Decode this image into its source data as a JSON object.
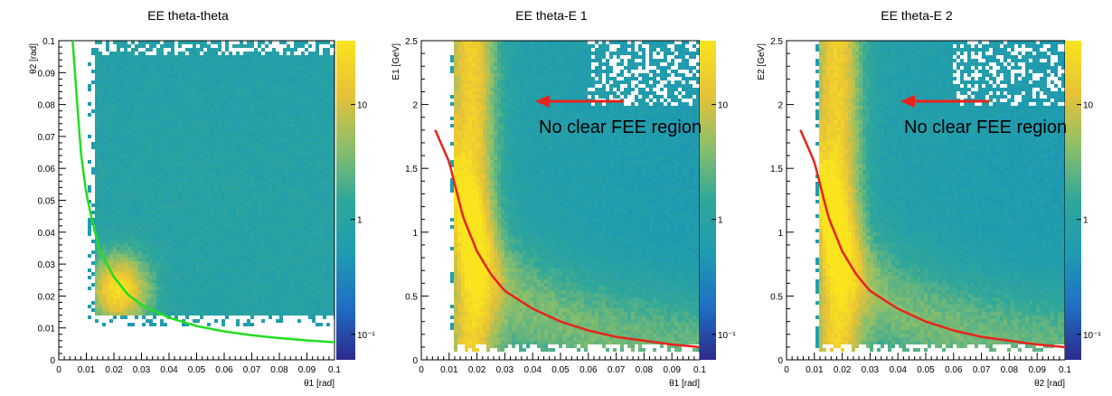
{
  "chart_data": [
    {
      "type": "heatmap",
      "title": "EE theta-theta",
      "xlabel": "θ1 [rad]",
      "ylabel": "θ2 [rad]",
      "xlim": [
        0,
        0.1
      ],
      "ylim": [
        0,
        0.1
      ],
      "x_ticks": [
        "0",
        "0.01",
        "0.02",
        "0.03",
        "0.04",
        "0.05",
        "0.06",
        "0.07",
        "0.08",
        "0.09",
        "0.1"
      ],
      "y_ticks": [
        "0",
        "0.01",
        "0.02",
        "0.03",
        "0.04",
        "0.05",
        "0.06",
        "0.07",
        "0.08",
        "0.09",
        "0.1"
      ],
      "colorbar_ticks": [
        "10",
        "1",
        "10⁻¹"
      ],
      "colorscale": [
        "#2c2a8c",
        "#1f6fc4",
        "#1f9bb0",
        "#2fa79a",
        "#8cbf6a",
        "#e8c237",
        "#f9e41e"
      ],
      "curve": {
        "color": "#22dd22",
        "x": [
          0.005,
          0.008,
          0.01,
          0.0125,
          0.015,
          0.02,
          0.025,
          0.03,
          0.04,
          0.05,
          0.06,
          0.07,
          0.08,
          0.09,
          0.1
        ],
        "y": [
          0.1,
          0.065,
          0.052,
          0.042,
          0.034,
          0.026,
          0.0205,
          0.0172,
          0.0132,
          0.0106,
          0.0089,
          0.0077,
          0.0068,
          0.0061,
          0.0055
        ]
      }
    },
    {
      "type": "heatmap",
      "title": "EE theta-E 1",
      "xlabel": "θ1 [rad]",
      "ylabel": "E1 [GeV]",
      "xlim": [
        0,
        0.1
      ],
      "ylim": [
        0,
        2.5
      ],
      "x_ticks": [
        "0",
        "0.01",
        "0.02",
        "0.03",
        "0.04",
        "0.05",
        "0.06",
        "0.07",
        "0.08",
        "0.09",
        "0.1"
      ],
      "y_ticks": [
        "0",
        "0.5",
        "1",
        "1.5",
        "2",
        "2.5"
      ],
      "colorbar_ticks": [
        "10",
        "1",
        "10⁻¹"
      ],
      "annotation": "No clear FEE region",
      "curve": {
        "color": "#e8231a",
        "x": [
          0.005,
          0.01,
          0.015,
          0.02,
          0.025,
          0.03,
          0.04,
          0.05,
          0.06,
          0.07,
          0.08,
          0.09,
          0.1
        ],
        "y": [
          1.8,
          1.55,
          1.12,
          0.85,
          0.67,
          0.54,
          0.4,
          0.3,
          0.23,
          0.18,
          0.15,
          0.12,
          0.1
        ]
      }
    },
    {
      "type": "heatmap",
      "title": "EE theta-E 2",
      "xlabel": "θ2 [rad]",
      "ylabel": "E2 [GeV]",
      "xlim": [
        0,
        0.1
      ],
      "ylim": [
        0,
        2.5
      ],
      "x_ticks": [
        "0",
        "0.01",
        "0.02",
        "0.03",
        "0.04",
        "0.05",
        "0.06",
        "0.07",
        "0.08",
        "0.09",
        "0.1"
      ],
      "y_ticks": [
        "0",
        "0.5",
        "1",
        "1.5",
        "2",
        "2.5"
      ],
      "colorbar_ticks": [
        "10",
        "1",
        "10⁻¹"
      ],
      "annotation": "No clear FEE region",
      "curve": {
        "color": "#e8231a",
        "x": [
          0.005,
          0.01,
          0.015,
          0.02,
          0.025,
          0.03,
          0.04,
          0.05,
          0.06,
          0.07,
          0.08,
          0.09,
          0.1
        ],
        "y": [
          1.8,
          1.55,
          1.12,
          0.85,
          0.67,
          0.54,
          0.4,
          0.3,
          0.23,
          0.18,
          0.15,
          0.12,
          0.1
        ]
      }
    }
  ]
}
